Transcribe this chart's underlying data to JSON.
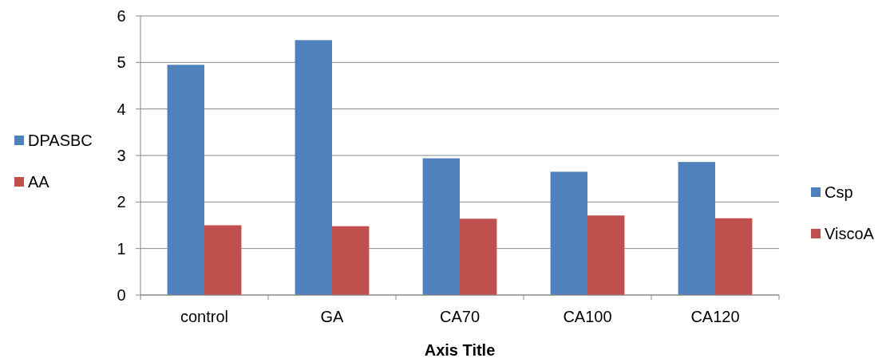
{
  "chart_data": {
    "type": "bar",
    "xlabel": "Axis Title",
    "categories": [
      "control",
      "GA",
      "CA70",
      "CA100",
      "CA120"
    ],
    "series": [
      {
        "name": "DPASBC",
        "color": "#4f81bd",
        "values": [
          4.95,
          5.48,
          2.94,
          2.65,
          2.86
        ]
      },
      {
        "name": "AA",
        "color": "#c0504d",
        "values": [
          1.5,
          1.48,
          1.64,
          1.71,
          1.65
        ]
      },
      {
        "name": "Csp",
        "color": "#4f81bd",
        "values": [
          null,
          null,
          null,
          null,
          null
        ]
      },
      {
        "name": "ViscoA",
        "color": "#c0504d",
        "values": [
          null,
          null,
          null,
          null,
          null
        ]
      }
    ],
    "ylim": [
      0,
      6
    ],
    "yticks": [
      0,
      1,
      2,
      3,
      4,
      5,
      6
    ],
    "grid": "y",
    "legend": "left"
  }
}
